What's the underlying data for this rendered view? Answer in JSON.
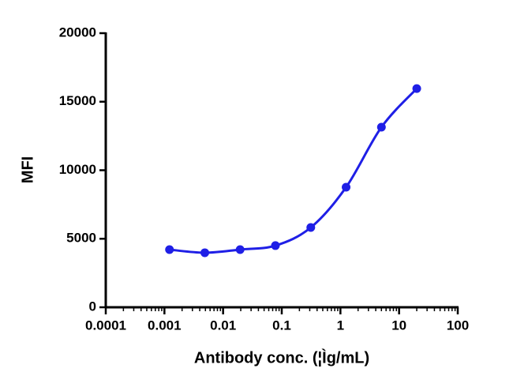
{
  "chart_data": {
    "type": "scatter",
    "x_label": "Antibody conc. (¦Ìg/mL)",
    "y_label": "MFI",
    "x": [
      0.00122,
      0.00488,
      0.0195,
      0.078,
      0.3125,
      1.25,
      5,
      20
    ],
    "series": [
      {
        "name": "MFI",
        "color": "#1f1fe6",
        "values": [
          4210,
          3980,
          4210,
          4500,
          5820,
          8760,
          13140,
          15960
        ]
      }
    ],
    "x_scale": "log",
    "xlim": [
      0.0001,
      100
    ],
    "xticks": [
      0.0001,
      0.001,
      0.01,
      0.1,
      1,
      10,
      100
    ],
    "ylim": [
      0,
      20000
    ],
    "yticks": [
      0,
      5000,
      10000,
      15000,
      20000
    ],
    "grid": false,
    "smooth_line": true
  }
}
